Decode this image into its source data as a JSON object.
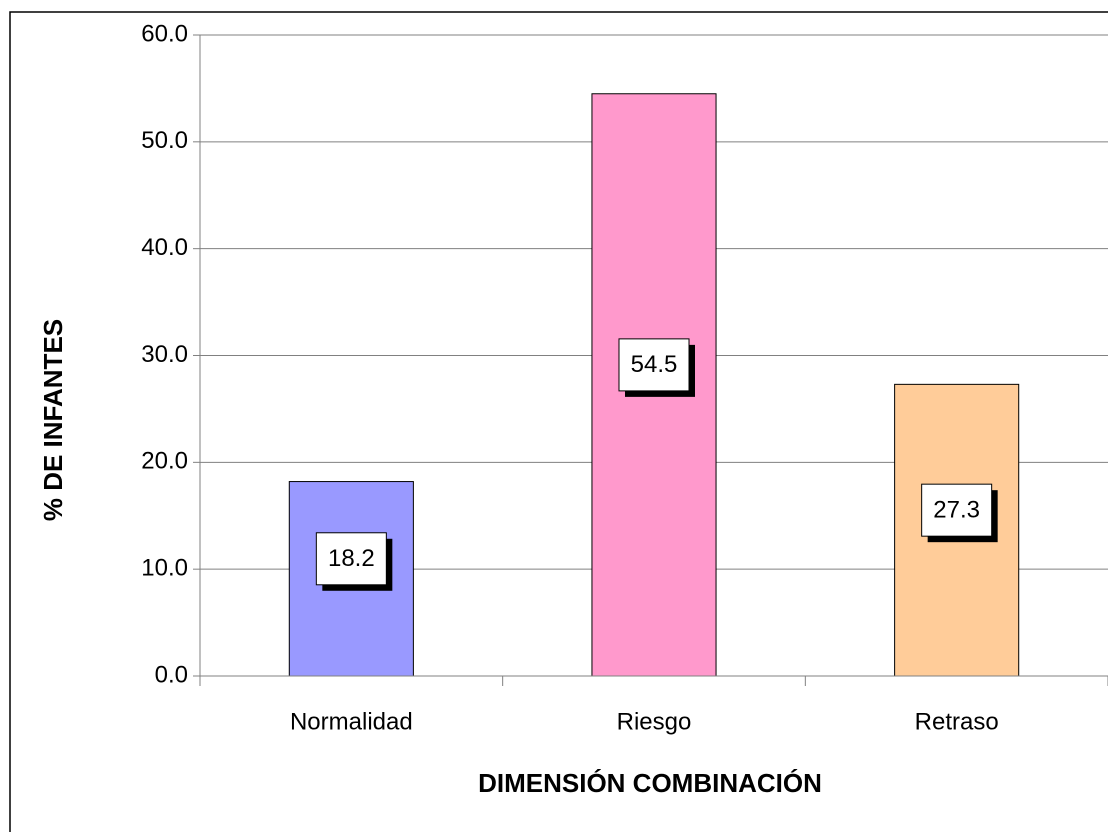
{
  "chart_data": {
    "type": "bar",
    "xlabel": "DIMENSIÓN COMBINACIÓN",
    "ylabel": "% DE INFANTES",
    "categories": [
      "Normalidad",
      "Riesgo",
      "Retraso"
    ],
    "values": [
      18.2,
      54.5,
      27.3
    ],
    "colors": [
      "#9999ff",
      "#ff99cc",
      "#ffcc99"
    ],
    "ylim": [
      0,
      60
    ],
    "yticks": [
      {
        "value": 0,
        "label": "0.0"
      },
      {
        "value": 10,
        "label": "10.0"
      },
      {
        "value": 20,
        "label": "20.0"
      },
      {
        "value": 30,
        "label": "30.0"
      },
      {
        "value": 40,
        "label": "40.0"
      },
      {
        "value": 50,
        "label": "50.0"
      },
      {
        "value": 60,
        "label": "60.0"
      }
    ],
    "grid": true
  }
}
